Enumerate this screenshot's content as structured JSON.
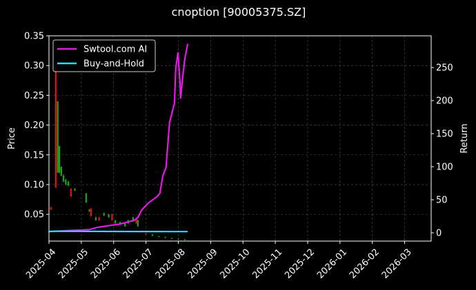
{
  "chart_data": {
    "type": "candlestick",
    "title": "cnoption [90005375.SZ]",
    "ylabel": "Price",
    "y2label": "Return",
    "xlim": [
      0,
      11.82
    ],
    "xticks": [
      {
        "value": 0,
        "label": "2025-04"
      },
      {
        "value": 1,
        "label": "2025-05"
      },
      {
        "value": 2,
        "label": "2025-06"
      },
      {
        "value": 3,
        "label": "2025-07"
      },
      {
        "value": 4,
        "label": "2025-08"
      },
      {
        "value": 5,
        "label": "2025-09"
      },
      {
        "value": 6,
        "label": "2025-10"
      },
      {
        "value": 7,
        "label": "2025-11"
      },
      {
        "value": 8,
        "label": "2025-12"
      },
      {
        "value": 9,
        "label": "2026-01"
      },
      {
        "value": 10,
        "label": "2026-02"
      },
      {
        "value": 11,
        "label": "2026-03"
      }
    ],
    "ylim": [
      0.005,
      0.35
    ],
    "yticks": [
      0.05,
      {
        "value": 0.1,
        "label": "0.10"
      },
      0.15,
      {
        "value": 0.2,
        "label": "0.20"
      },
      0.25,
      {
        "value": 0.3,
        "label": "0.30"
      },
      0.35
    ],
    "y2lim": [
      -12.5,
      298
    ],
    "y2ticks": [
      0,
      50,
      100,
      150,
      200,
      250
    ],
    "grid": true,
    "legend": "upper left",
    "up_color": "#1f9e1f",
    "down_color": "#e01010",
    "candles": {
      "x": [
        0.06,
        0.21,
        0.27,
        0.32,
        0.38,
        0.45,
        0.52,
        0.6,
        0.68,
        0.8,
        1.15,
        1.25,
        1.3,
        1.45,
        1.55,
        1.7,
        1.85,
        1.95,
        2.05,
        2.2,
        2.35,
        2.45,
        2.6,
        2.7,
        2.75,
        2.85,
        3.0,
        3.2,
        3.4,
        3.6,
        3.8,
        4.0,
        4.2
      ],
      "open": [
        0.062,
        0.3,
        0.12,
        0.12,
        0.115,
        0.105,
        0.1,
        0.098,
        0.093,
        0.09,
        0.07,
        0.055,
        0.06,
        0.04,
        0.045,
        0.048,
        0.045,
        0.05,
        0.035,
        0.033,
        0.03,
        0.035,
        0.038,
        0.042,
        0.03,
        0.022,
        0.018,
        0.014,
        0.012,
        0.011,
        0.009,
        0.008,
        0.007
      ],
      "high": [
        0.063,
        0.3,
        0.24,
        0.165,
        0.13,
        0.118,
        0.11,
        0.106,
        0.094,
        0.094,
        0.086,
        0.059,
        0.061,
        0.046,
        0.046,
        0.053,
        0.051,
        0.051,
        0.041,
        0.038,
        0.036,
        0.041,
        0.046,
        0.043,
        0.041,
        0.023,
        0.019,
        0.017,
        0.014,
        0.013,
        0.011,
        0.01,
        0.009
      ],
      "low": [
        0.056,
        0.094,
        0.12,
        0.119,
        0.114,
        0.104,
        0.099,
        0.097,
        0.079,
        0.089,
        0.069,
        0.054,
        0.046,
        0.039,
        0.039,
        0.047,
        0.044,
        0.039,
        0.034,
        0.032,
        0.029,
        0.034,
        0.037,
        0.034,
        0.029,
        0.019,
        0.015,
        0.013,
        0.011,
        0.01,
        0.008,
        0.007,
        0.006
      ],
      "close": [
        0.058,
        0.095,
        0.24,
        0.165,
        0.13,
        0.115,
        0.108,
        0.105,
        0.08,
        0.093,
        0.085,
        0.058,
        0.047,
        0.045,
        0.04,
        0.052,
        0.05,
        0.04,
        0.04,
        0.037,
        0.035,
        0.04,
        0.045,
        0.035,
        0.04,
        0.02,
        0.016,
        0.016,
        0.013,
        0.012,
        0.01,
        0.009,
        0.008
      ]
    },
    "series": [
      {
        "name": "Swtool.com AI",
        "color": "#e619e6",
        "axis": "y2",
        "x": [
          0,
          1.26,
          1.47,
          2.22,
          2.64,
          2.75,
          2.86,
          3.07,
          3.35,
          3.43,
          3.52,
          3.62,
          3.73,
          3.88,
          3.92,
          3.99,
          4.05,
          4.07,
          4.14,
          4.2,
          4.29
        ],
        "values": [
          2,
          5,
          8,
          13.5,
          19,
          23,
          34,
          45,
          55,
          60,
          86,
          99,
          167,
          196,
          248,
          273,
          229,
          203,
          237,
          263,
          286
        ]
      },
      {
        "name": "Buy-and-Hold",
        "color": "#22e0f0",
        "axis": "y2",
        "x": [
          0,
          0.2,
          1,
          2,
          3,
          4,
          4.29
        ],
        "values": [
          2,
          2.5,
          2.3,
          2.1,
          2,
          1.9,
          1.9
        ]
      }
    ]
  }
}
